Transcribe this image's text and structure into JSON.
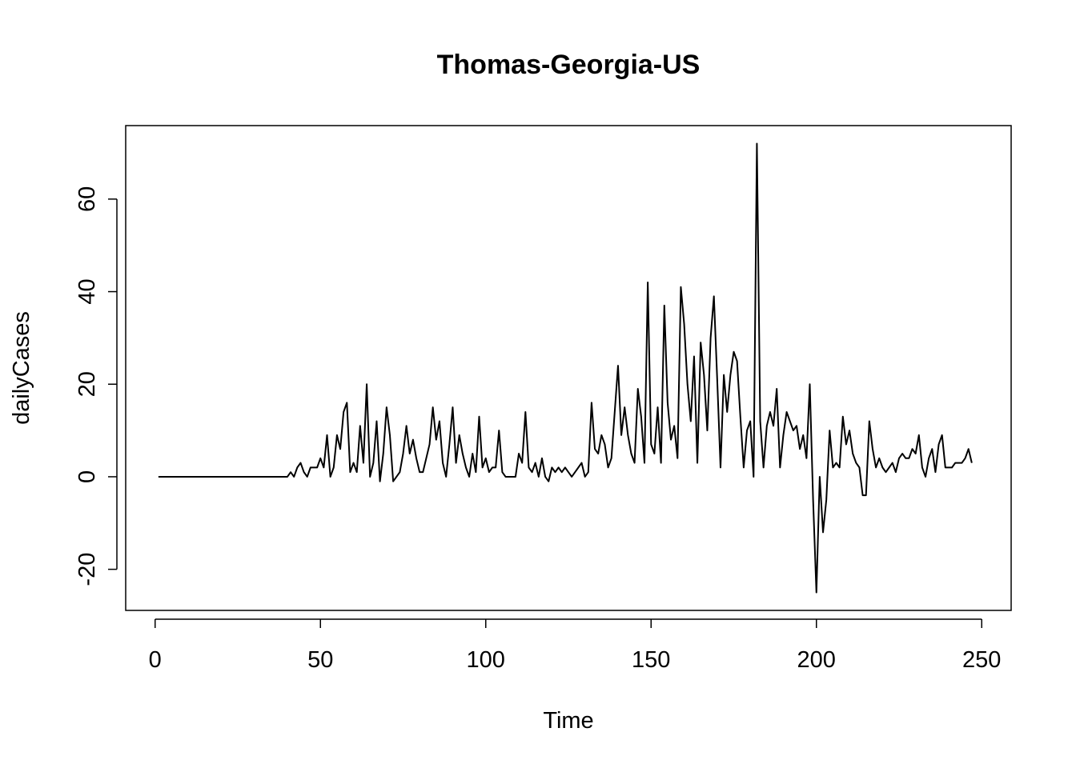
{
  "chart_data": {
    "type": "line",
    "title": "Thomas-Georgia-US",
    "xlabel": "Time",
    "ylabel": "dailyCases",
    "xlim": [
      -8.9,
      258.9
    ],
    "ylim": [
      -28.88,
      75.88
    ],
    "x_ticks": [
      0,
      50,
      100,
      150,
      200,
      250
    ],
    "y_ticks": [
      -20,
      0,
      20,
      40,
      60
    ],
    "grid": false,
    "legend": "none",
    "line_color": "#000000",
    "series": [
      {
        "x_start": 1,
        "values": [
          0,
          0,
          0,
          0,
          0,
          0,
          0,
          0,
          0,
          0,
          0,
          0,
          0,
          0,
          0,
          0,
          0,
          0,
          0,
          0,
          0,
          0,
          0,
          0,
          0,
          0,
          0,
          0,
          0,
          0,
          0,
          0,
          0,
          0,
          0,
          0,
          0,
          0,
          0,
          0,
          1,
          0,
          2,
          3,
          1,
          0,
          2,
          2,
          2,
          4,
          2,
          9,
          0,
          2,
          9,
          6,
          14,
          16,
          1,
          3,
          1,
          11,
          3,
          20,
          0,
          3,
          12,
          -1,
          5,
          15,
          9,
          -1,
          0,
          1,
          5,
          11,
          5,
          8,
          4,
          1,
          1,
          4,
          7,
          15,
          8,
          12,
          3,
          0,
          7,
          15,
          3,
          9,
          5,
          2,
          0,
          5,
          1,
          13,
          2,
          4,
          1,
          2,
          2,
          10,
          1,
          0,
          0,
          0,
          0,
          5,
          3,
          14,
          2,
          1,
          3,
          0,
          4,
          0,
          -1,
          2,
          1,
          2,
          1,
          2,
          1,
          0,
          1,
          2,
          3,
          0,
          1,
          16,
          6,
          5,
          9,
          7,
          2,
          4,
          14,
          24,
          9,
          15,
          9,
          5,
          3,
          19,
          13,
          3,
          42,
          7,
          5,
          15,
          3,
          37,
          16,
          8,
          11,
          4,
          41,
          33,
          20,
          12,
          26,
          3,
          29,
          22,
          10,
          30,
          39,
          21,
          2,
          22,
          14,
          22,
          27,
          25,
          13,
          2,
          10,
          12,
          0,
          72,
          12,
          2,
          11,
          14,
          11,
          19,
          2,
          9,
          14,
          12,
          10,
          11,
          6,
          9,
          4,
          20,
          -5,
          -25,
          0,
          -12,
          -5,
          10,
          2,
          3,
          2,
          13,
          7,
          10,
          5,
          3,
          2,
          -4,
          -4,
          12,
          6,
          2,
          4,
          2,
          1,
          2,
          3,
          1,
          4,
          5,
          4,
          4,
          6,
          5,
          9,
          2,
          0,
          4,
          6,
          1,
          7,
          9,
          2,
          2,
          2,
          3,
          3,
          3,
          4,
          6,
          3
        ]
      }
    ]
  }
}
